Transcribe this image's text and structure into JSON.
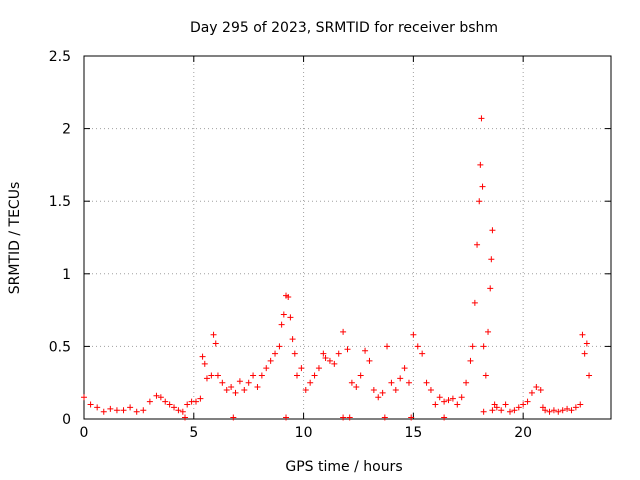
{
  "chart_data": {
    "type": "scatter",
    "title": "Day 295 of 2023, SRMTID for receiver bshm",
    "xlabel": "GPS time / hours",
    "ylabel": "SRMTID / TECUs",
    "xlim": [
      0,
      24
    ],
    "ylim": [
      0,
      2.5
    ],
    "x_ticks": [
      0,
      5,
      10,
      15,
      20
    ],
    "x_tick_labels": [
      "0",
      "5",
      "10",
      "15",
      "20"
    ],
    "y_ticks": [
      0,
      0.5,
      1,
      1.5,
      2,
      2.5
    ],
    "y_tick_labels": [
      "0",
      "0.5",
      "1",
      "1.5",
      "2",
      "2.5"
    ],
    "grid": true,
    "marker": "+",
    "series": [
      {
        "name": "SRMTID",
        "color": "#ff0000",
        "x": [
          0.0,
          0.3,
          0.6,
          0.9,
          1.2,
          1.5,
          1.8,
          2.1,
          2.4,
          2.7,
          3.0,
          3.3,
          3.5,
          3.7,
          3.9,
          4.1,
          4.3,
          4.5,
          4.7,
          4.9,
          5.1,
          5.3,
          5.4,
          5.5,
          5.6,
          5.8,
          5.9,
          6.0,
          6.1,
          6.3,
          6.5,
          6.7,
          6.9,
          7.1,
          7.3,
          7.5,
          7.7,
          7.9,
          8.1,
          8.3,
          8.5,
          8.7,
          8.9,
          9.0,
          9.1,
          9.2,
          9.3,
          9.4,
          9.5,
          9.6,
          9.7,
          9.9,
          10.1,
          10.3,
          10.5,
          10.7,
          10.9,
          11.0,
          11.2,
          11.4,
          11.6,
          11.8,
          12.0,
          12.2,
          12.4,
          12.6,
          12.8,
          13.0,
          13.2,
          13.4,
          13.6,
          13.8,
          14.0,
          14.2,
          14.4,
          14.6,
          14.8,
          15.0,
          15.2,
          15.4,
          15.6,
          15.8,
          16.0,
          16.2,
          16.4,
          16.6,
          16.8,
          17.0,
          17.2,
          17.4,
          17.6,
          17.7,
          17.8,
          17.9,
          18.0,
          18.05,
          18.1,
          18.15,
          18.2,
          18.3,
          18.4,
          18.5,
          18.55,
          18.6,
          18.7,
          18.8,
          19.0,
          19.2,
          19.4,
          19.6,
          19.8,
          20.0,
          20.2,
          20.4,
          20.6,
          20.8,
          20.9,
          21.0,
          21.2,
          21.4,
          21.6,
          21.8,
          22.0,
          22.2,
          22.4,
          22.6,
          22.7,
          22.8,
          22.9,
          23.0,
          4.6,
          6.8,
          9.2,
          11.8,
          12.1,
          13.7,
          14.9,
          16.4,
          18.2,
          18.6
        ],
        "y": [
          0.15,
          0.1,
          0.08,
          0.05,
          0.07,
          0.06,
          0.06,
          0.08,
          0.05,
          0.06,
          0.12,
          0.16,
          0.15,
          0.12,
          0.1,
          0.08,
          0.06,
          0.05,
          0.1,
          0.12,
          0.12,
          0.14,
          0.43,
          0.38,
          0.28,
          0.3,
          0.58,
          0.52,
          0.3,
          0.25,
          0.2,
          0.22,
          0.18,
          0.26,
          0.2,
          0.25,
          0.3,
          0.22,
          0.3,
          0.35,
          0.4,
          0.45,
          0.5,
          0.65,
          0.72,
          0.85,
          0.84,
          0.7,
          0.55,
          0.45,
          0.3,
          0.35,
          0.2,
          0.25,
          0.3,
          0.35,
          0.45,
          0.42,
          0.4,
          0.38,
          0.45,
          0.6,
          0.48,
          0.25,
          0.22,
          0.3,
          0.47,
          0.4,
          0.2,
          0.15,
          0.18,
          0.5,
          0.25,
          0.2,
          0.28,
          0.35,
          0.25,
          0.58,
          0.5,
          0.45,
          0.25,
          0.2,
          0.1,
          0.15,
          0.12,
          0.13,
          0.14,
          0.1,
          0.15,
          0.25,
          0.4,
          0.5,
          0.8,
          1.2,
          1.5,
          1.75,
          2.07,
          1.6,
          0.5,
          0.3,
          0.6,
          0.9,
          1.1,
          1.3,
          0.1,
          0.08,
          0.06,
          0.1,
          0.05,
          0.06,
          0.08,
          0.1,
          0.12,
          0.18,
          0.22,
          0.2,
          0.08,
          0.06,
          0.05,
          0.06,
          0.05,
          0.06,
          0.07,
          0.06,
          0.08,
          0.1,
          0.58,
          0.45,
          0.52,
          0.3,
          0.01,
          0.01,
          0.01,
          0.01,
          0.01,
          0.01,
          0.01,
          0.01,
          0.05,
          0.06
        ]
      }
    ]
  }
}
